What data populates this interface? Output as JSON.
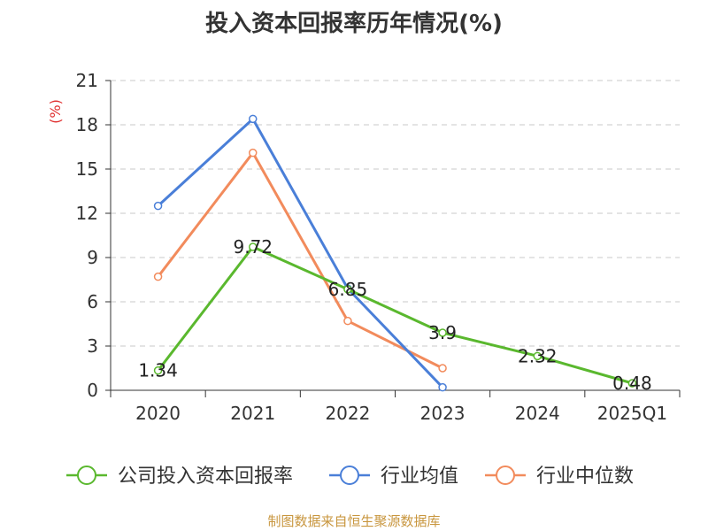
{
  "title": "投入资本回报率历年情况(%)",
  "source": "制图数据来自恒生聚源数据库",
  "chart_data": {
    "type": "line",
    "title": "投入资本回报率历年情况(%)",
    "ylabel": "(%)",
    "ylabel_color": "#e03030",
    "categories": [
      "2020",
      "2021",
      "2022",
      "2023",
      "2024",
      "2025Q1"
    ],
    "ylim": [
      0,
      21
    ],
    "yticks": [
      0,
      3,
      6,
      9,
      12,
      15,
      18,
      21
    ],
    "grid": true,
    "legend_position": "bottom",
    "series": [
      {
        "name": "公司投入资本回报率",
        "color": "#5ab82e",
        "values": [
          1.34,
          9.72,
          6.85,
          3.9,
          2.32,
          0.48
        ],
        "labels": true
      },
      {
        "name": "行业均值",
        "color": "#4a7fd8",
        "values": [
          12.5,
          18.4,
          6.9,
          0.2,
          null,
          null
        ],
        "labels": false
      },
      {
        "name": "行业中位数",
        "color": "#f28b5c",
        "values": [
          7.7,
          16.1,
          4.7,
          1.5,
          null,
          null
        ],
        "labels": false
      }
    ]
  }
}
